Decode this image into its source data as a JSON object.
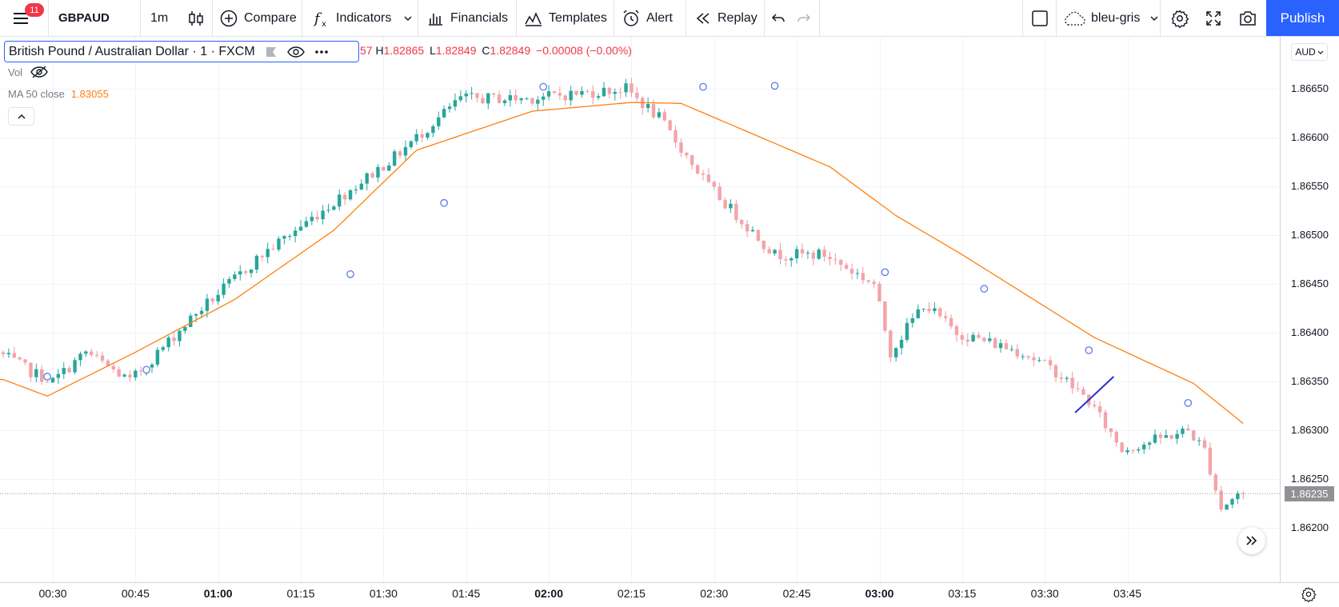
{
  "toolbar": {
    "notification_count": "11",
    "symbol": "GBPAUD",
    "interval": "1m",
    "compare_label": "Compare",
    "indicators_label": "Indicators",
    "financials_label": "Financials",
    "templates_label": "Templates",
    "alert_label": "Alert",
    "replay_label": "Replay",
    "layout_name": "bleu-gris",
    "publish_label": "Publish"
  },
  "legend": {
    "symbol_title": "British Pound / Australian Dollar · 1 · FXCM",
    "open_partial": "57",
    "high_prefix": "H",
    "high": "1.82865",
    "low_prefix": "L",
    "low": "1.82849",
    "close_prefix": "C",
    "close": "1.82849",
    "change": "−0.00008 (−0.00%)",
    "vol_label": "Vol",
    "ma_label": "MA 50 close",
    "ma_value": "1.83055"
  },
  "price_scale": {
    "currency": "AUD",
    "last_price_label": "1.86235"
  },
  "colors": {
    "up": "#26a69a",
    "down": "#ef5350",
    "ma": "#ff7f0e",
    "accent": "#2962ff",
    "drawing": "#2c2ccf"
  },
  "chart_data": {
    "type": "candlestick",
    "series_label": "GBPAUD 1m",
    "y_ticks": [
      1.862,
      1.8625,
      1.863,
      1.8635,
      1.864,
      1.8645,
      1.865,
      1.8655,
      1.866,
      1.8665
    ],
    "ylim": [
      1.8619,
      1.8672
    ],
    "x_ticks": [
      "00:30",
      "00:45",
      "01:00",
      "01:15",
      "01:30",
      "01:45",
      "02:00",
      "02:15",
      "02:30",
      "02:45",
      "03:00",
      "03:15",
      "03:30",
      "03:45"
    ],
    "x_ticks_bold": [
      "01:00",
      "02:00",
      "03:00"
    ],
    "time_start": "00:21",
    "time_end": "03:57",
    "last_price": 1.86235,
    "ma_label": "MA 50 close",
    "ma_keypoints": [
      [
        0,
        1.86352
      ],
      [
        8,
        1.86335
      ],
      [
        24,
        1.8638
      ],
      [
        42,
        1.86434
      ],
      [
        60,
        1.86505
      ],
      [
        75,
        1.86587
      ],
      [
        96,
        1.86627
      ],
      [
        114,
        1.86636
      ],
      [
        123,
        1.86635
      ],
      [
        150,
        1.8657
      ],
      [
        162,
        1.8652
      ],
      [
        174,
        1.8648
      ],
      [
        198,
        1.86395
      ],
      [
        216,
        1.86348
      ],
      [
        225,
        1.86307
      ]
    ],
    "candle_keypoints": [
      [
        0,
        1.8638
      ],
      [
        6,
        1.8636
      ],
      [
        10,
        1.8635
      ],
      [
        16,
        1.8638
      ],
      [
        24,
        1.8635
      ],
      [
        36,
        1.8642
      ],
      [
        48,
        1.8648
      ],
      [
        60,
        1.8653
      ],
      [
        72,
        1.8658
      ],
      [
        84,
        1.8664
      ],
      [
        96,
        1.8664
      ],
      [
        114,
        1.8665
      ],
      [
        120,
        1.8662
      ],
      [
        129,
        1.8655
      ],
      [
        141,
        1.8648
      ],
      [
        150,
        1.8648
      ],
      [
        159,
        1.8645
      ],
      [
        162,
        1.8638
      ],
      [
        168,
        1.8643
      ],
      [
        174,
        1.864
      ],
      [
        186,
        1.8638
      ],
      [
        192,
        1.8636
      ],
      [
        198,
        1.8633
      ],
      [
        204,
        1.8628
      ],
      [
        216,
        1.863
      ],
      [
        219,
        1.8628
      ],
      [
        222,
        1.8622
      ],
      [
        225,
        1.86235
      ]
    ],
    "drawing_line": [
      [
        194.5,
        1.86318
      ],
      [
        201.5,
        1.86355
      ]
    ]
  }
}
